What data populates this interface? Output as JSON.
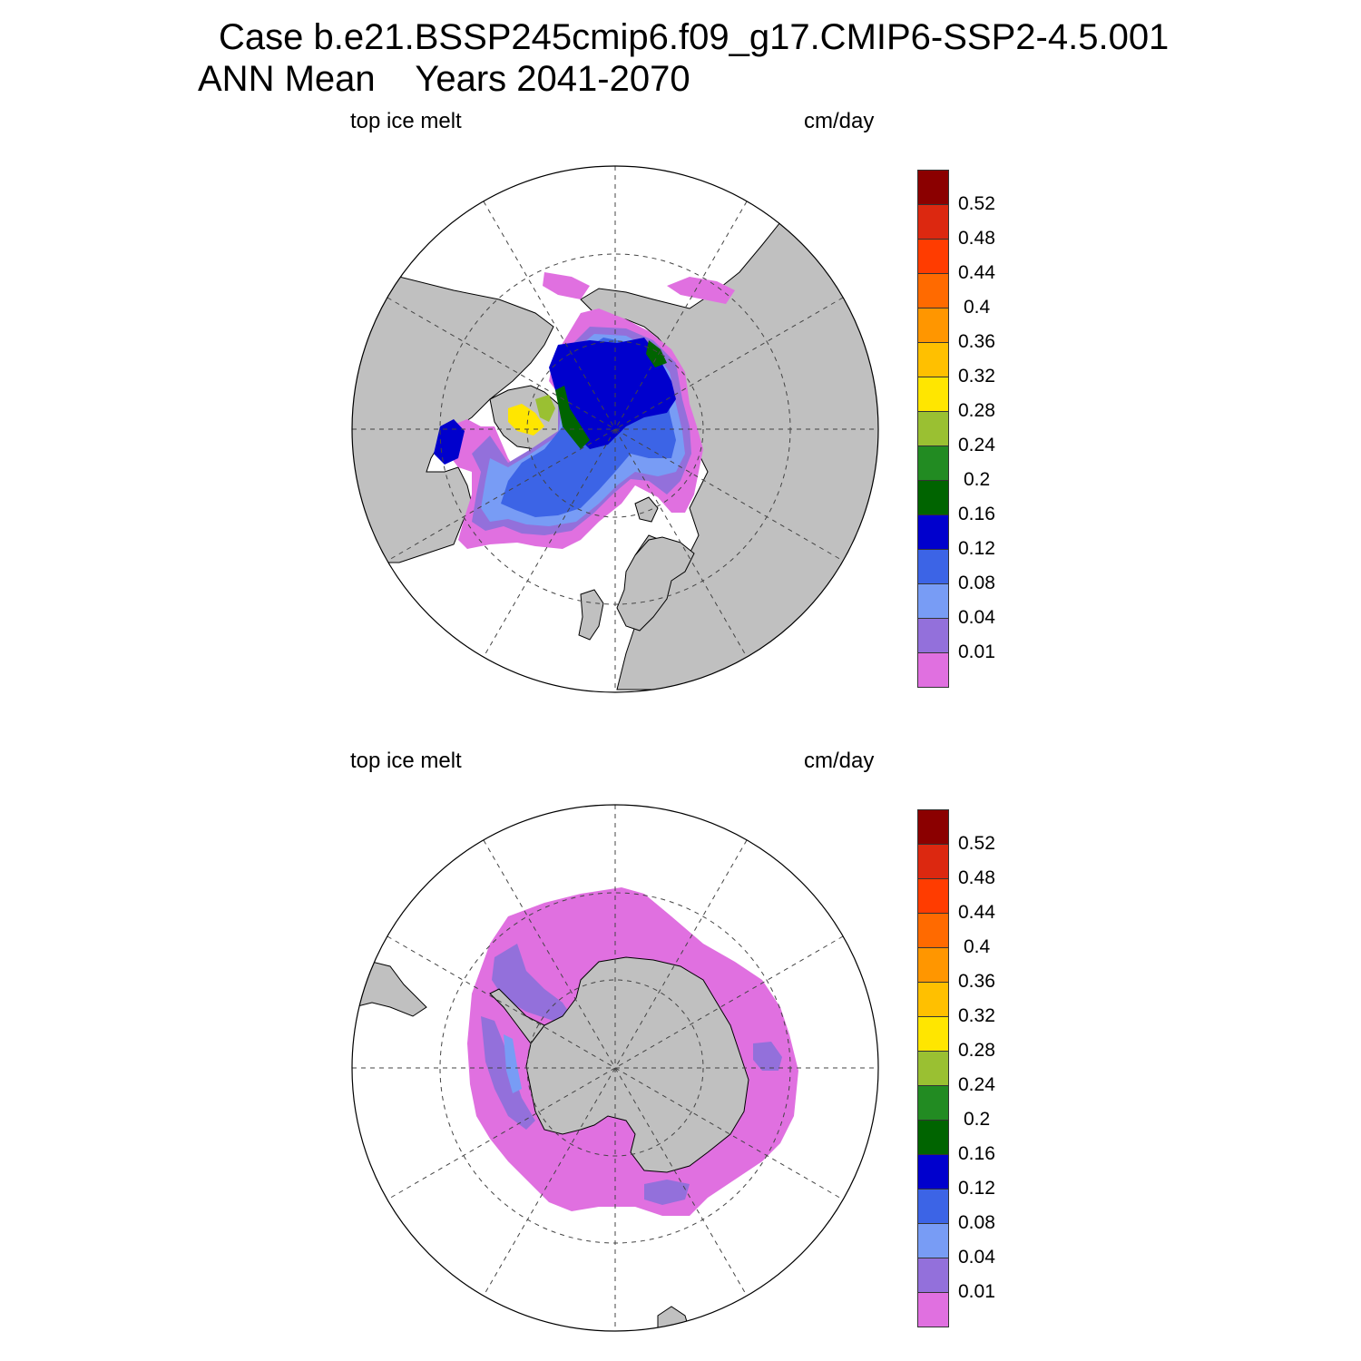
{
  "title": {
    "line1": "Case b.e21.BSSP245cmip6.f09_g17.CMIP6-SSP2-4.5.001",
    "line2": "ANN Mean    Years 2041-2070"
  },
  "panels": [
    {
      "id": "north",
      "left_label": "top ice melt",
      "right_label": "cm/day",
      "hemisphere": "Northern Hemisphere polar stereographic"
    },
    {
      "id": "south",
      "left_label": "top ice melt",
      "right_label": "cm/day",
      "hemisphere": "Southern Hemisphere polar stereographic"
    }
  ],
  "colorbar": {
    "levels": [
      "0.52",
      "0.48",
      "0.44",
      "0.4",
      "0.36",
      "0.32",
      "0.28",
      "0.24",
      "0.2",
      "0.16",
      "0.12",
      "0.08",
      "0.04",
      "0.01"
    ],
    "colors_top_to_bottom": [
      "#8b0000",
      "#dc2810",
      "#ff3c00",
      "#ff6a00",
      "#ff9600",
      "#ffc000",
      "#ffe600",
      "#9ac032",
      "#228b22",
      "#006400",
      "#0000cd",
      "#3c64e6",
      "#789cf5",
      "#9370db",
      "#e070e0"
    ]
  },
  "colors": {
    "land": "#c0c0c0",
    "ocean_no_ice": "#ffffff",
    "grid": "#444444"
  }
}
